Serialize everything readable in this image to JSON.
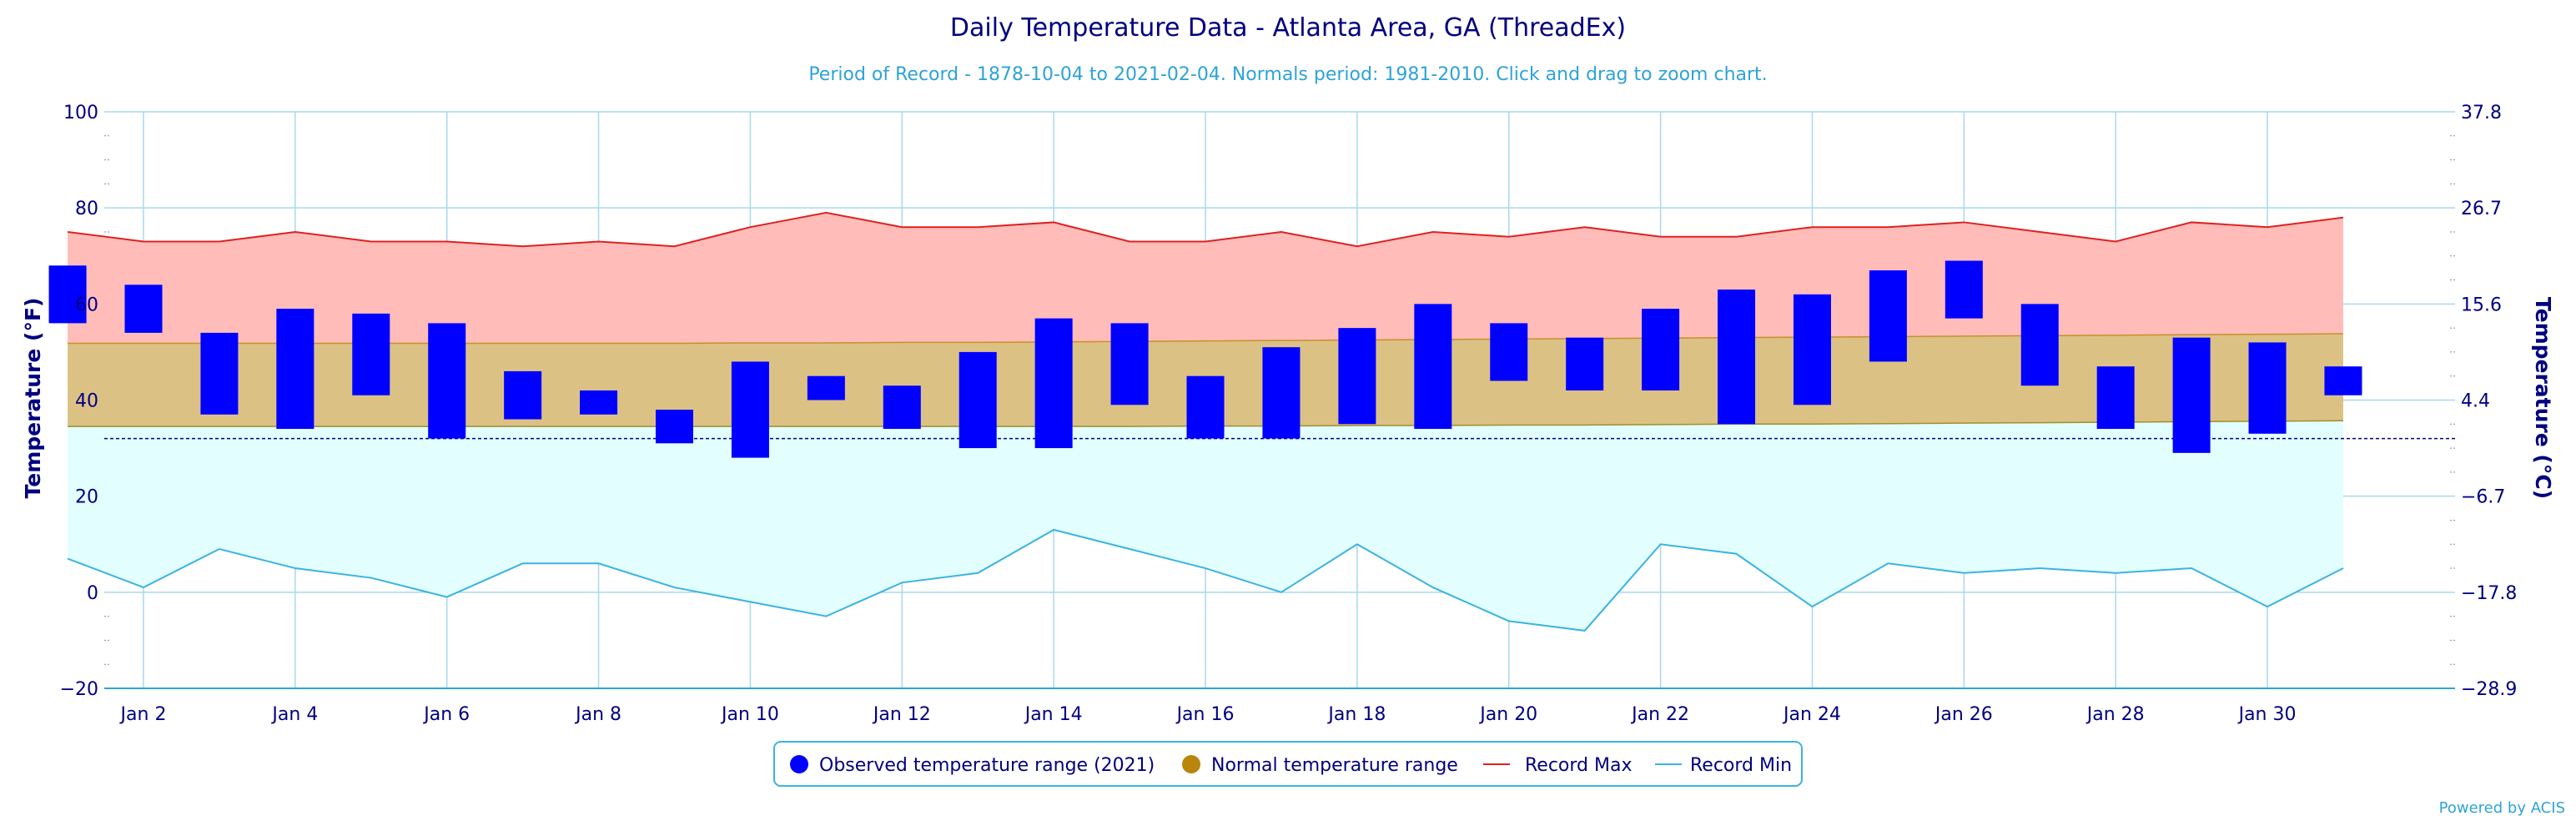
{
  "chart_data": {
    "type": "bar",
    "title": "Daily Temperature Data - Atlanta Area, GA (ThreadEx)",
    "subtitle": "Period of Record - 1878-10-04 to 2021-02-04. Normals period: 1981-2010. Click and drag to zoom chart.",
    "ylabel": "Temperature (°F)",
    "ylabel_right": "Temperature (°C)",
    "ylim": [
      -20,
      100
    ],
    "yticks": [
      "100",
      "80",
      "60",
      "40",
      "20",
      "0",
      "−20"
    ],
    "yticks_right": [
      "37.8",
      "26.7",
      "15.6",
      "4.4",
      "−6.7",
      "−17.8",
      "−28.9"
    ],
    "x": [
      1,
      2,
      3,
      4,
      5,
      6,
      7,
      8,
      9,
      10,
      11,
      12,
      13,
      14,
      15,
      16,
      17,
      18,
      19,
      20,
      21,
      22,
      23,
      24,
      25,
      26,
      27,
      28,
      29,
      30,
      31
    ],
    "xtick_labels": [
      {
        "day": 2,
        "label": "Jan 2"
      },
      {
        "day": 4,
        "label": "Jan 4"
      },
      {
        "day": 6,
        "label": "Jan 6"
      },
      {
        "day": 8,
        "label": "Jan 8"
      },
      {
        "day": 10,
        "label": "Jan 10"
      },
      {
        "day": 12,
        "label": "Jan 12"
      },
      {
        "day": 14,
        "label": "Jan 14"
      },
      {
        "day": 16,
        "label": "Jan 16"
      },
      {
        "day": 18,
        "label": "Jan 18"
      },
      {
        "day": 20,
        "label": "Jan 20"
      },
      {
        "day": 22,
        "label": "Jan 22"
      },
      {
        "day": 24,
        "label": "Jan 24"
      },
      {
        "day": 26,
        "label": "Jan 26"
      },
      {
        "day": 28,
        "label": "Jan 28"
      },
      {
        "day": 30,
        "label": "Jan 30"
      }
    ],
    "freezing_line": 32,
    "grid": true,
    "legend_position": "bottom-center",
    "series": [
      {
        "name": "Observed temperature range (2021)",
        "color": "#0000ff",
        "low": [
          56,
          54,
          37,
          34,
          41,
          32,
          36,
          37,
          31,
          28,
          40,
          34,
          30,
          30,
          39,
          32,
          32,
          35,
          34,
          44,
          42,
          42,
          35,
          39,
          48,
          57,
          43,
          34,
          29,
          33,
          41
        ],
        "high": [
          68,
          64,
          54,
          59,
          58,
          56,
          46,
          42,
          38,
          48,
          45,
          43,
          50,
          57,
          56,
          45,
          51,
          55,
          60,
          56,
          53,
          59,
          63,
          62,
          67,
          69,
          60,
          47,
          53,
          52,
          47
        ]
      },
      {
        "name": "Normal temperature range",
        "color": "#b8860b",
        "low": [
          34.5,
          34.5,
          34.5,
          34.5,
          34.5,
          34.5,
          34.5,
          34.5,
          34.5,
          34.5,
          34.5,
          34.5,
          34.5,
          34.5,
          34.5,
          34.6,
          34.6,
          34.7,
          34.7,
          34.8,
          34.8,
          34.9,
          35,
          35,
          35.1,
          35.2,
          35.3,
          35.4,
          35.5,
          35.6,
          35.7
        ],
        "high": [
          51.8,
          51.8,
          51.8,
          51.8,
          51.8,
          51.8,
          51.8,
          51.8,
          51.8,
          51.9,
          51.9,
          52,
          52,
          52.1,
          52.2,
          52.3,
          52.4,
          52.5,
          52.6,
          52.7,
          52.8,
          52.9,
          53,
          53.1,
          53.2,
          53.3,
          53.4,
          53.5,
          53.6,
          53.7,
          53.8
        ]
      },
      {
        "name": "Record Max",
        "color": "#dd2222",
        "values": [
          75,
          73,
          73,
          75,
          73,
          73,
          72,
          73,
          72,
          76,
          79,
          76,
          76,
          77,
          73,
          73,
          75,
          72,
          75,
          74,
          76,
          74,
          74,
          76,
          76,
          77,
          75,
          73,
          77,
          76,
          78
        ]
      },
      {
        "name": "Record Min",
        "color": "#3bb3e0",
        "values": [
          7,
          1,
          9,
          5,
          3,
          -1,
          6,
          6,
          1,
          -2,
          -5,
          2,
          4,
          13,
          9,
          5,
          0,
          10,
          1,
          -6,
          -8,
          10,
          8,
          -3,
          6,
          4,
          5,
          4,
          5,
          -3,
          5
        ]
      }
    ]
  },
  "credit": "Powered by ACIS"
}
